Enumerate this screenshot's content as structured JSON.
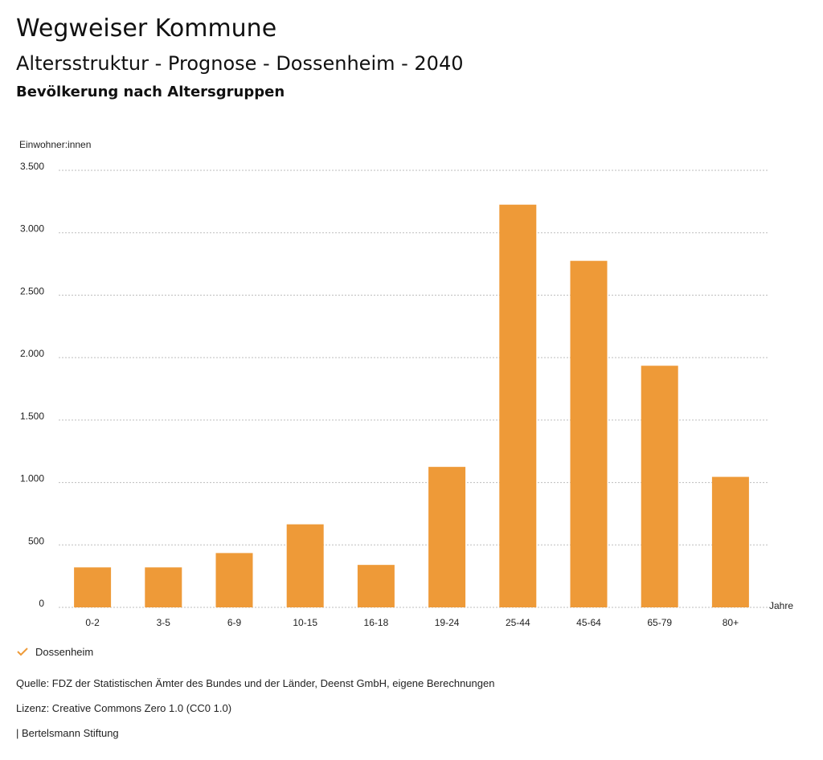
{
  "header": {
    "title": "Wegweiser Kommune",
    "subtitle": "Altersstruktur - Prognose - Dossenheim - 2040",
    "subtitle2": "Bevölkerung nach Altersgruppen"
  },
  "chart_data": {
    "type": "bar",
    "ylabel": "Einwohner:innen",
    "xlabel": "Jahre",
    "categories": [
      "0-2",
      "3-5",
      "6-9",
      "10-15",
      "16-18",
      "19-24",
      "25-44",
      "45-64",
      "65-79",
      "80+"
    ],
    "series": [
      {
        "name": "Dossenheim",
        "values": [
          320,
          320,
          435,
          665,
          340,
          1125,
          3225,
          2775,
          1935,
          1045
        ]
      }
    ],
    "ylim": [
      0,
      3500
    ],
    "yticks": [
      0,
      500,
      1000,
      1500,
      2000,
      2500,
      3000,
      3500
    ],
    "ytick_labels": [
      "0",
      "500",
      "1.000",
      "1.500",
      "2.000",
      "2.500",
      "3.000",
      "3.500"
    ],
    "grid": true,
    "legend_position": "bottom-left",
    "bar_color": "#ee9a38"
  },
  "legend": {
    "label": "Dossenheim",
    "color": "#ee9a38"
  },
  "footer": {
    "source": "Quelle: FDZ der Statistischen Ämter des Bundes und der Länder, Deenst GmbH, eigene Berechnungen",
    "license": "Lizenz: Creative Commons Zero 1.0 (CC0 1.0)",
    "org": "| Bertelsmann Stiftung"
  }
}
